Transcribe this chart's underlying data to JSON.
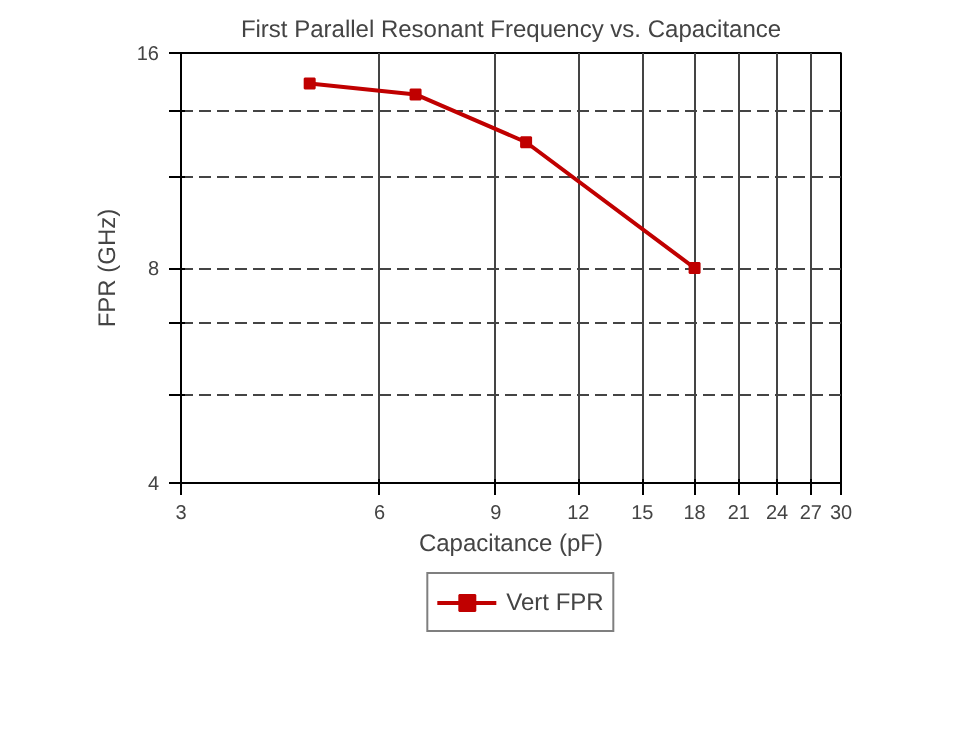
{
  "chart_data": {
    "type": "line",
    "title": "First Parallel Resonant Frequency vs. Capacitance",
    "xlabel": "Capacitance (pF)",
    "ylabel": "FPR (GHz)",
    "log": "xy",
    "x": [
      4.7,
      6.8,
      10,
      18
    ],
    "series": [
      {
        "name": "Vert FPR",
        "color": "#c00000",
        "values": [
          14.5,
          14.0,
          12.0,
          8.0
        ]
      }
    ],
    "xlim": [
      3,
      30
    ],
    "xticks": [
      3,
      6,
      9,
      12,
      15,
      18,
      21,
      24,
      27,
      30
    ],
    "ylim": [
      4,
      16
    ],
    "yticks": [
      4,
      {
        "value": 5.3,
        "label": null
      },
      {
        "value": 6.7,
        "label": null
      },
      8,
      {
        "value": 10.7,
        "label": null
      },
      {
        "value": 13.3,
        "label": null
      },
      16
    ],
    "grid": true,
    "legend": "bottom",
    "marker": "square",
    "line_style": "solid"
  }
}
